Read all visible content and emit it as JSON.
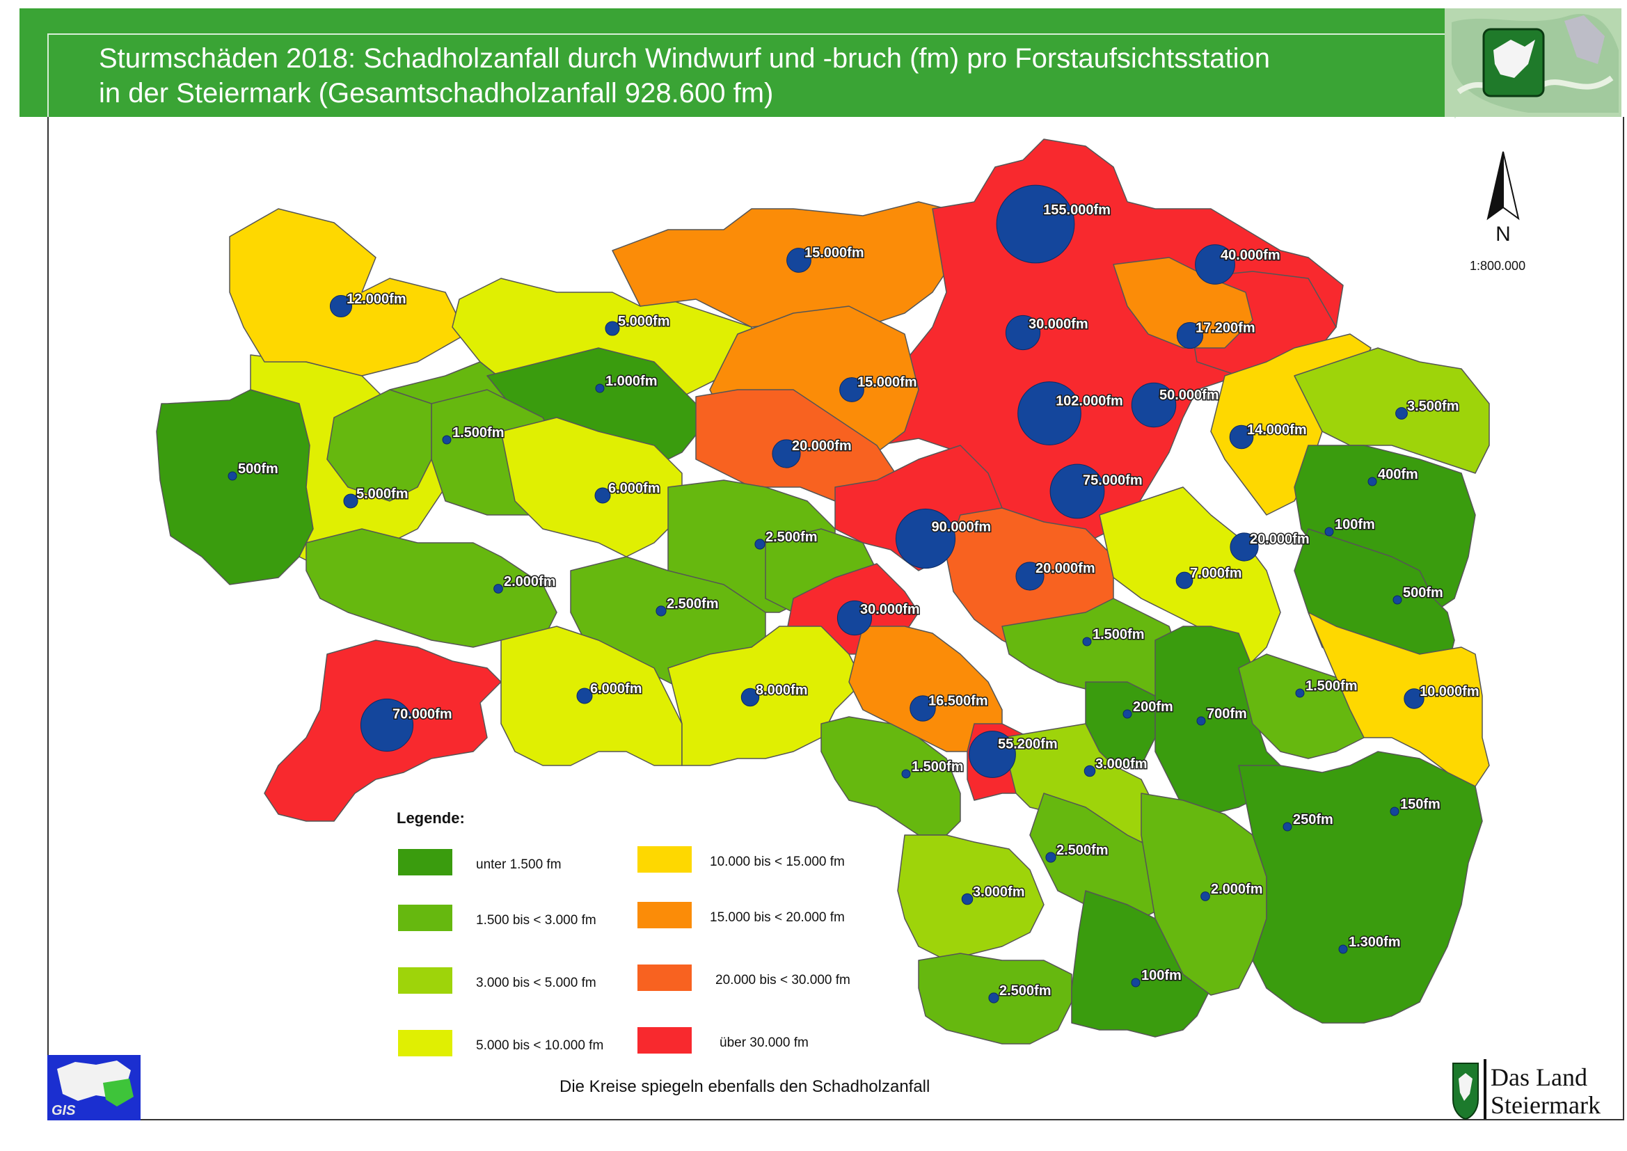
{
  "title": {
    "line1": "Sturmschäden 2018: Schadholzanfall durch Windwurf und -bruch (fm) pro Forstaufsichtsstation",
    "line2": "in der Steiermark (Gesamtschadholzanfall 928.600 fm)"
  },
  "north_arrow": {
    "label": "N"
  },
  "scale": "1:800.000",
  "legend": {
    "title": "Legende:",
    "items": [
      {
        "label": "unter  1.500 fm",
        "color": "#3a9c0e"
      },
      {
        "label": "1.500 bis <  3.000 fm",
        "color": "#66b80f"
      },
      {
        "label": "3.000 bis <  5.000 fm",
        "color": "#9ed40a"
      },
      {
        "label": "5.000 bis < 10.000 fm",
        "color": "#e0ef02"
      },
      {
        "label": "10.000 bis < 15.000 fm",
        "color": "#fed800"
      },
      {
        "label": "15.000 bis < 20.000 fm",
        "color": "#fb8c08"
      },
      {
        "label": "20.000 bis < 30.000 fm",
        "color": "#f86220"
      },
      {
        "label": "über 30.000 fm",
        "color": "#f8292e"
      }
    ]
  },
  "footer": "Die Kreise spiegeln ebenfalls den Schadholzanfall",
  "logos": {
    "gis": "GIS",
    "land_line1": "Das Land",
    "land_line2": "Steiermark"
  },
  "stations": [
    {
      "value": 155000,
      "label": "155.000fm"
    },
    {
      "value": 40000,
      "label": "40.000fm"
    },
    {
      "value": 15000,
      "label": "15.000fm"
    },
    {
      "value": 12000,
      "label": "12.000fm"
    },
    {
      "value": 5000,
      "label": "5.000fm"
    },
    {
      "value": 1000,
      "label": "1.000fm"
    },
    {
      "value": 30000,
      "label": "30.000fm"
    },
    {
      "value": 17200,
      "label": "17.200fm"
    },
    {
      "value": 15000,
      "label": "15.000fm"
    },
    {
      "value": 102000,
      "label": "102.000fm"
    },
    {
      "value": 50000,
      "label": "50.000fm"
    },
    {
      "value": 3500,
      "label": "3.500fm"
    },
    {
      "value": 14000,
      "label": "14.000fm"
    },
    {
      "value": 1500,
      "label": "1.500fm"
    },
    {
      "value": 500,
      "label": "500fm"
    },
    {
      "value": 20000,
      "label": "20.000fm"
    },
    {
      "value": 5000,
      "label": "5.000fm"
    },
    {
      "value": 6000,
      "label": "6.000fm"
    },
    {
      "value": 75000,
      "label": "75.000fm"
    },
    {
      "value": 400,
      "label": "400fm"
    },
    {
      "value": 100,
      "label": "100fm"
    },
    {
      "value": 2500,
      "label": "2.500fm"
    },
    {
      "value": 90000,
      "label": "90.000fm"
    },
    {
      "value": 20000,
      "label": "20.000fm"
    },
    {
      "value": 2000,
      "label": "2.000fm"
    },
    {
      "value": 20000,
      "label": "20.000fm"
    },
    {
      "value": 7000,
      "label": "7.000fm"
    },
    {
      "value": 500,
      "label": "500fm"
    },
    {
      "value": 2500,
      "label": "2.500fm"
    },
    {
      "value": 30000,
      "label": "30.000fm"
    },
    {
      "value": 1500,
      "label": "1.500fm"
    },
    {
      "value": 6000,
      "label": "6.000fm"
    },
    {
      "value": 8000,
      "label": "8.000fm"
    },
    {
      "value": 16500,
      "label": "16.500fm"
    },
    {
      "value": 200,
      "label": "200fm"
    },
    {
      "value": 1500,
      "label": "1.500fm"
    },
    {
      "value": 10000,
      "label": "10.000fm"
    },
    {
      "value": 70000,
      "label": "70.000fm"
    },
    {
      "value": 700,
      "label": "700fm"
    },
    {
      "value": 55200,
      "label": "55.200fm"
    },
    {
      "value": 1500,
      "label": "1.500fm"
    },
    {
      "value": 3000,
      "label": "3.000fm"
    },
    {
      "value": 250,
      "label": "250fm"
    },
    {
      "value": 150,
      "label": "150fm"
    },
    {
      "value": 2500,
      "label": "2.500fm"
    },
    {
      "value": 3000,
      "label": "3.000fm"
    },
    {
      "value": 2000,
      "label": "2.000fm"
    },
    {
      "value": 1300,
      "label": "1.300fm"
    },
    {
      "value": 100,
      "label": "100fm"
    },
    {
      "value": 2500,
      "label": "2.500fm"
    }
  ]
}
